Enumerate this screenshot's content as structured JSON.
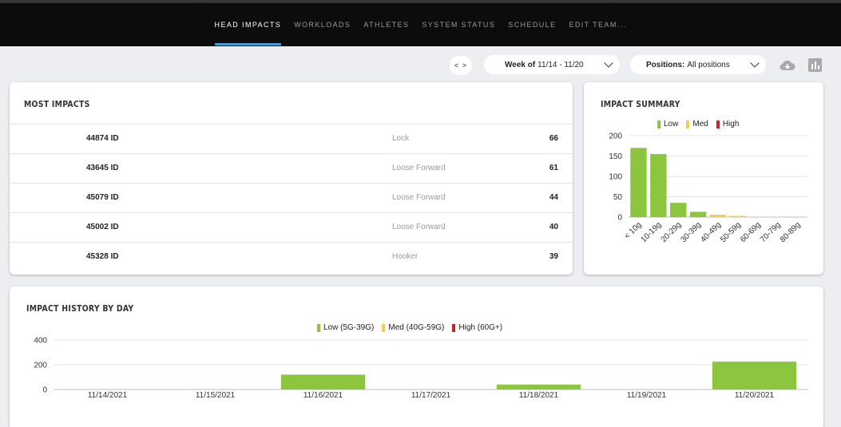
{
  "nav": {
    "tabs": [
      {
        "label": "HEAD IMPACTS",
        "active": true
      },
      {
        "label": "WORKLOADS",
        "active": false
      },
      {
        "label": "ATHLETES",
        "active": false
      },
      {
        "label": "SYSTEM STATUS",
        "active": false
      },
      {
        "label": "SCHEDULE",
        "active": false
      },
      {
        "label": "EDIT TEAM...",
        "active": false
      }
    ]
  },
  "toolbar": {
    "nav_arrows": "< >",
    "week_label": "Week of",
    "week_value": "11/14 - 11/20",
    "positions_label": "Positions:",
    "positions_value": "All positions",
    "download_icon": "cloud-download-icon",
    "chart_icon": "bar-chart-icon"
  },
  "most_impacts": {
    "title": "MOST IMPACTS",
    "rows": [
      {
        "id": "44874 ID",
        "position": "Lock",
        "count": "66"
      },
      {
        "id": "43645 ID",
        "position": "Loose Forward",
        "count": "61"
      },
      {
        "id": "45079 ID",
        "position": "Loose Forward",
        "count": "44"
      },
      {
        "id": "45002 ID",
        "position": "Loose Forward",
        "count": "40"
      },
      {
        "id": "45328 ID",
        "position": "Hooker",
        "count": "39"
      }
    ]
  },
  "colors": {
    "low": "#8cc63f",
    "med": "#f2d04a",
    "high": "#c0272d",
    "accent": "#3b9ad9"
  },
  "impact_summary": {
    "title": "IMPACT SUMMARY",
    "legend": [
      "Low",
      "Med",
      "High"
    ]
  },
  "impact_history": {
    "title": "IMPACT HISTORY BY DAY",
    "legend": [
      "Low (5G-39G)",
      "Med (40G-59G)",
      "High (60G+)"
    ]
  },
  "chart_data": [
    {
      "type": "bar",
      "title": "IMPACT SUMMARY",
      "categories": [
        "< 10g",
        "10-19g",
        "20-29g",
        "30-39g",
        "40-49g",
        "50-59g",
        "60-69g",
        "70-79g",
        "80-89g"
      ],
      "series": [
        {
          "name": "Low",
          "values": [
            170,
            155,
            35,
            13,
            0,
            0,
            0,
            0,
            0
          ]
        },
        {
          "name": "Med",
          "values": [
            0,
            0,
            0,
            0,
            6,
            3,
            0,
            0,
            0
          ]
        },
        {
          "name": "High",
          "values": [
            0,
            0,
            0,
            0,
            0,
            0,
            0,
            0,
            0
          ]
        }
      ],
      "yticks": [
        "0",
        "50",
        "100",
        "150",
        "200"
      ],
      "ylim": [
        0,
        200
      ],
      "grid": true,
      "legend": "top"
    },
    {
      "type": "bar",
      "title": "IMPACT HISTORY BY DAY",
      "categories": [
        "11/14/2021",
        "11/15/2021",
        "11/16/2021",
        "11/17/2021",
        "11/18/2021",
        "11/19/2021",
        "11/20/2021"
      ],
      "series": [
        {
          "name": "Low (5G-39G)",
          "values": [
            0,
            0,
            120,
            0,
            40,
            0,
            225
          ]
        },
        {
          "name": "Med (40G-59G)",
          "values": [
            0,
            0,
            0,
            0,
            0,
            0,
            0
          ]
        },
        {
          "name": "High (60G+)",
          "values": [
            0,
            0,
            0,
            0,
            0,
            0,
            0
          ]
        }
      ],
      "yticks": [
        "0",
        "200",
        "400"
      ],
      "ylim": [
        0,
        400
      ],
      "grid": true,
      "legend": "top"
    }
  ]
}
